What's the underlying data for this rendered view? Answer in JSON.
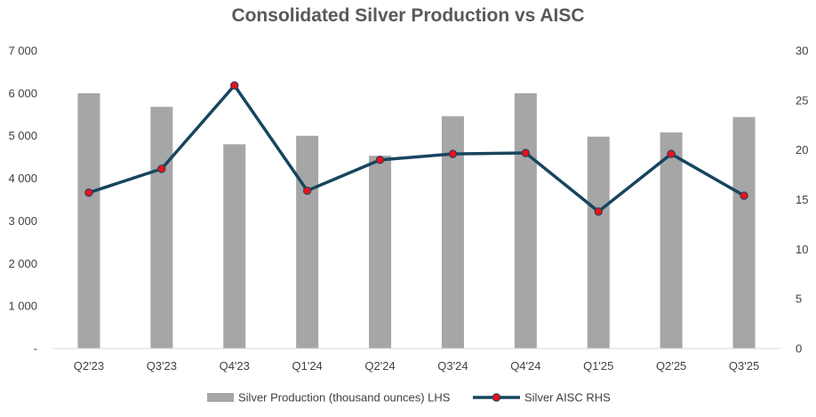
{
  "chart_data": {
    "type": "bar",
    "title": "Consolidated Silver Production vs AISC",
    "categories": [
      "Q2'23",
      "Q3'23",
      "Q4'23",
      "Q1'24",
      "Q2'24",
      "Q3'24",
      "Q4'24",
      "Q1'25",
      "Q2'25",
      "Q3'25"
    ],
    "series": [
      {
        "name": "Silver Production (thousand ounces) LHS",
        "type": "bar",
        "axis": "left",
        "color": "#a6a6a6",
        "values": [
          6000,
          5680,
          4800,
          5000,
          4530,
          5460,
          6000,
          4980,
          5080,
          5440
        ]
      },
      {
        "name": "Silver AISC RHS",
        "type": "line",
        "axis": "right",
        "color": "#17455e",
        "marker_color": "#e8101a",
        "values": [
          15.7,
          18.1,
          26.5,
          15.9,
          19.0,
          19.6,
          19.7,
          13.8,
          19.6,
          15.4
        ]
      }
    ],
    "ylim_left": [
      0,
      7000
    ],
    "yticks_left": [
      "-",
      "1 000",
      "2 000",
      "3 000",
      "4 000",
      "5 000",
      "6 000",
      "7 000"
    ],
    "ylim_right": [
      0,
      30
    ],
    "yticks_right": [
      "0",
      "5",
      "10",
      "15",
      "20",
      "25",
      "30"
    ],
    "grid": false,
    "legend": "bottom"
  }
}
